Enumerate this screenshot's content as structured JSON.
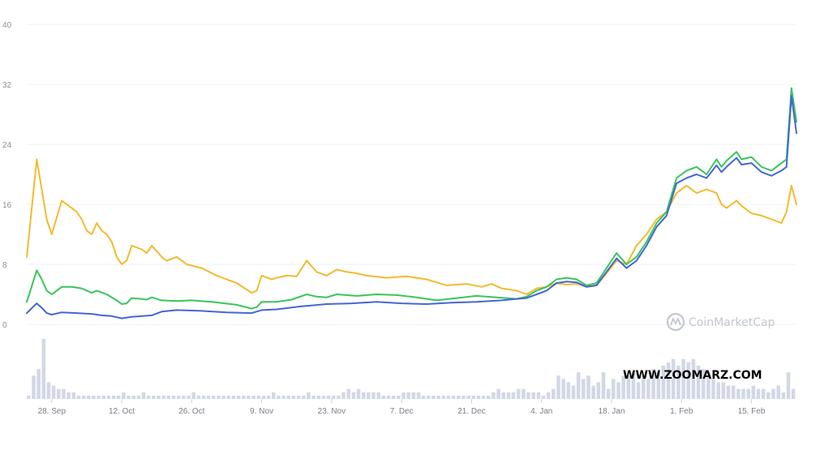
{
  "chart_data": {
    "type": "line",
    "y_ticks": [
      "0",
      "8",
      "16",
      "24",
      "32",
      "40"
    ],
    "y_tick_values": [
      0,
      8,
      16,
      24,
      32,
      40
    ],
    "ylim": [
      0,
      40
    ],
    "grid": true,
    "x_tick_labels": [
      "28. Sep",
      "12. Oct",
      "26. Oct",
      "9. Nov",
      "23. Nov",
      "7. Dec",
      "21. Dec",
      "4. Jan",
      "18. Jan",
      "1. Feb",
      "15. Feb"
    ],
    "x_tick_positions": [
      5,
      19,
      33,
      47,
      61,
      75,
      89,
      103,
      117,
      131,
      145
    ],
    "x_range": [
      0,
      154
    ],
    "series": [
      {
        "color": "#f3ba2f",
        "points": [
          [
            0,
            9
          ],
          [
            2,
            22
          ],
          [
            3,
            18
          ],
          [
            4,
            14
          ],
          [
            5,
            12
          ],
          [
            7,
            16.5
          ],
          [
            9,
            15.5
          ],
          [
            10,
            15
          ],
          [
            11,
            14
          ],
          [
            12,
            12.5
          ],
          [
            13,
            12
          ],
          [
            14,
            13.5
          ],
          [
            15,
            12.5
          ],
          [
            16,
            12
          ],
          [
            17,
            11
          ],
          [
            18,
            9
          ],
          [
            19,
            8
          ],
          [
            20,
            8.5
          ],
          [
            21,
            10.5
          ],
          [
            23,
            10
          ],
          [
            24,
            9.5
          ],
          [
            25,
            10.5
          ],
          [
            27,
            9
          ],
          [
            28,
            8.5
          ],
          [
            30,
            9
          ],
          [
            32,
            8
          ],
          [
            35,
            7.5
          ],
          [
            38,
            6.5
          ],
          [
            42,
            5.5
          ],
          [
            45,
            4.2
          ],
          [
            46,
            4.5
          ],
          [
            47,
            6.5
          ],
          [
            49,
            6
          ],
          [
            50,
            6.2
          ],
          [
            52,
            6.5
          ],
          [
            54,
            6.4
          ],
          [
            56,
            8.5
          ],
          [
            58,
            7
          ],
          [
            60,
            6.5
          ],
          [
            62,
            7.3
          ],
          [
            64,
            7
          ],
          [
            66,
            6.8
          ],
          [
            68,
            6.5
          ],
          [
            72,
            6.2
          ],
          [
            76,
            6.4
          ],
          [
            80,
            6
          ],
          [
            84,
            5.2
          ],
          [
            88,
            5.4
          ],
          [
            91,
            5
          ],
          [
            93,
            5.4
          ],
          [
            95,
            4.8
          ],
          [
            98,
            4.5
          ],
          [
            100,
            4
          ],
          [
            102,
            4.8
          ],
          [
            104,
            5
          ],
          [
            106,
            5.5
          ],
          [
            108,
            5.3
          ],
          [
            110,
            5.4
          ],
          [
            112,
            5
          ],
          [
            114,
            5.2
          ],
          [
            116,
            6.8
          ],
          [
            118,
            8.5
          ],
          [
            120,
            8
          ],
          [
            122,
            10.5
          ],
          [
            124,
            12
          ],
          [
            126,
            14
          ],
          [
            128,
            15
          ],
          [
            130,
            17.5
          ],
          [
            132,
            18.5
          ],
          [
            134,
            17.5
          ],
          [
            136,
            18
          ],
          [
            138,
            17.5
          ],
          [
            139,
            16
          ],
          [
            140,
            15.5
          ],
          [
            142,
            16.5
          ],
          [
            143,
            15.8
          ],
          [
            145,
            14.8
          ],
          [
            147,
            14.5
          ],
          [
            149,
            14
          ],
          [
            151,
            13.5
          ],
          [
            152,
            15
          ],
          [
            153,
            18.5
          ],
          [
            154,
            16
          ]
        ]
      },
      {
        "color": "#3ac55a",
        "points": [
          [
            0,
            3
          ],
          [
            2,
            7.2
          ],
          [
            3,
            6
          ],
          [
            4,
            4.5
          ],
          [
            5,
            4
          ],
          [
            6,
            4.5
          ],
          [
            7,
            5
          ],
          [
            9,
            5
          ],
          [
            11,
            4.8
          ],
          [
            12,
            4.5
          ],
          [
            13,
            4.2
          ],
          [
            14,
            4.5
          ],
          [
            16,
            4
          ],
          [
            18,
            3.2
          ],
          [
            19,
            2.7
          ],
          [
            20,
            2.8
          ],
          [
            21,
            3.5
          ],
          [
            23,
            3.4
          ],
          [
            24,
            3.3
          ],
          [
            25,
            3.6
          ],
          [
            27,
            3.2
          ],
          [
            30,
            3.1
          ],
          [
            33,
            3.2
          ],
          [
            37,
            3
          ],
          [
            42,
            2.6
          ],
          [
            45,
            2.1
          ],
          [
            46,
            2.3
          ],
          [
            47,
            3
          ],
          [
            50,
            3
          ],
          [
            53,
            3.3
          ],
          [
            56,
            4
          ],
          [
            58,
            3.7
          ],
          [
            60,
            3.6
          ],
          [
            62,
            4
          ],
          [
            66,
            3.8
          ],
          [
            70,
            4
          ],
          [
            74,
            3.9
          ],
          [
            78,
            3.6
          ],
          [
            82,
            3.2
          ],
          [
            86,
            3.5
          ],
          [
            90,
            3.8
          ],
          [
            94,
            3.6
          ],
          [
            98,
            3.4
          ],
          [
            100,
            3.7
          ],
          [
            102,
            4.5
          ],
          [
            104,
            5
          ],
          [
            106,
            6
          ],
          [
            108,
            6.2
          ],
          [
            110,
            6
          ],
          [
            112,
            5.2
          ],
          [
            114,
            5.5
          ],
          [
            116,
            7.5
          ],
          [
            118,
            9.5
          ],
          [
            120,
            8
          ],
          [
            122,
            9
          ],
          [
            124,
            11
          ],
          [
            126,
            13.5
          ],
          [
            128,
            15
          ],
          [
            130,
            19.5
          ],
          [
            132,
            20.5
          ],
          [
            134,
            21
          ],
          [
            136,
            20
          ],
          [
            138,
            22
          ],
          [
            139,
            21
          ],
          [
            140,
            21.8
          ],
          [
            142,
            23
          ],
          [
            143,
            22
          ],
          [
            145,
            22.3
          ],
          [
            147,
            21
          ],
          [
            149,
            20.5
          ],
          [
            151,
            21.5
          ],
          [
            152,
            22
          ],
          [
            153,
            31.5
          ],
          [
            154,
            27
          ]
        ]
      },
      {
        "color": "#4466d6",
        "points": [
          [
            0,
            1.5
          ],
          [
            2,
            2.8
          ],
          [
            3,
            2.2
          ],
          [
            4,
            1.5
          ],
          [
            5,
            1.3
          ],
          [
            7,
            1.6
          ],
          [
            10,
            1.5
          ],
          [
            13,
            1.4
          ],
          [
            15,
            1.2
          ],
          [
            17,
            1.1
          ],
          [
            19,
            0.8
          ],
          [
            21,
            1
          ],
          [
            25,
            1.2
          ],
          [
            27,
            1.7
          ],
          [
            30,
            1.9
          ],
          [
            35,
            1.8
          ],
          [
            40,
            1.6
          ],
          [
            45,
            1.5
          ],
          [
            47,
            1.9
          ],
          [
            50,
            2
          ],
          [
            55,
            2.4
          ],
          [
            60,
            2.7
          ],
          [
            65,
            2.8
          ],
          [
            70,
            3
          ],
          [
            75,
            2.8
          ],
          [
            80,
            2.7
          ],
          [
            85,
            2.9
          ],
          [
            90,
            3
          ],
          [
            95,
            3.2
          ],
          [
            100,
            3.5
          ],
          [
            102,
            4
          ],
          [
            104,
            4.5
          ],
          [
            106,
            5.5
          ],
          [
            108,
            5.7
          ],
          [
            110,
            5.6
          ],
          [
            112,
            5
          ],
          [
            114,
            5.2
          ],
          [
            116,
            7
          ],
          [
            118,
            8.8
          ],
          [
            120,
            7.5
          ],
          [
            122,
            8.5
          ],
          [
            124,
            10.5
          ],
          [
            126,
            13
          ],
          [
            128,
            14.5
          ],
          [
            130,
            18.8
          ],
          [
            132,
            19.5
          ],
          [
            134,
            20
          ],
          [
            136,
            19.5
          ],
          [
            138,
            21.2
          ],
          [
            139,
            20.3
          ],
          [
            140,
            21
          ],
          [
            142,
            22.2
          ],
          [
            143,
            21.3
          ],
          [
            145,
            21.5
          ],
          [
            147,
            20.3
          ],
          [
            149,
            19.8
          ],
          [
            151,
            20.5
          ],
          [
            152,
            21
          ],
          [
            153,
            30.5
          ],
          [
            154,
            25.5
          ]
        ]
      }
    ],
    "volume": [
      1,
      7,
      9,
      18,
      5,
      4,
      3,
      3,
      2,
      2,
      1,
      1,
      1,
      1,
      1,
      1,
      1,
      1,
      1,
      2,
      1,
      1,
      1,
      2,
      1,
      1,
      1,
      1,
      1,
      1,
      1,
      1,
      1,
      2,
      1,
      1,
      1,
      1,
      1,
      1,
      1,
      1,
      1,
      1,
      1,
      1,
      1,
      1,
      1,
      2,
      1,
      1,
      1,
      1,
      1,
      1,
      2,
      1,
      1,
      1,
      1,
      1,
      1,
      2,
      3,
      2,
      3,
      2,
      2,
      2,
      2,
      1,
      1,
      1,
      1,
      2,
      2,
      2,
      2,
      1,
      1,
      1,
      1,
      1,
      1,
      1,
      1,
      1,
      1,
      1,
      1,
      1,
      1,
      2,
      3,
      2,
      2,
      2,
      3,
      3,
      2,
      2,
      2,
      1,
      2,
      3,
      7,
      6,
      5,
      4,
      8,
      6,
      7,
      4,
      5,
      8,
      3,
      6,
      5,
      7,
      7,
      8,
      5,
      7,
      6,
      9,
      8,
      10,
      11,
      12,
      10,
      12,
      11,
      12,
      10,
      9,
      8,
      6,
      5,
      5,
      4,
      4,
      3,
      3,
      3,
      4,
      3,
      3,
      2,
      3,
      4,
      2,
      8,
      3
    ]
  },
  "watermark": {
    "text": "CoinMarketCap",
    "icon": "coinmarketcap-logo-icon"
  },
  "site_label": "WWW.ZOOMARZ.COM"
}
